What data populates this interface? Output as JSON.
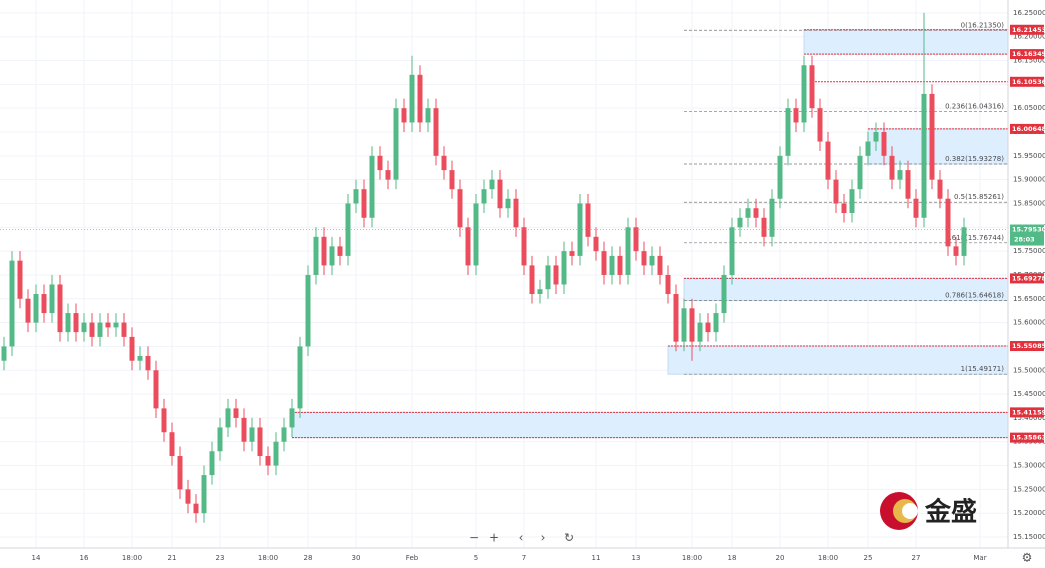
{
  "chart_data": {
    "type": "candlestick",
    "open": [
      15.52,
      15.55,
      15.73,
      15.65,
      15.6,
      15.66,
      15.62,
      15.68,
      15.58,
      15.62,
      15.58,
      15.6,
      15.57,
      15.6,
      15.59,
      15.6,
      15.57,
      15.52,
      15.53,
      15.5,
      15.42,
      15.37,
      15.32,
      15.25,
      15.22,
      15.2,
      15.28,
      15.33,
      15.38,
      15.42,
      15.4,
      15.35,
      15.38,
      15.32,
      15.3,
      15.35,
      15.38,
      15.42,
      15.55,
      15.7,
      15.78,
      15.72,
      15.76,
      15.74,
      15.85,
      15.88,
      15.82,
      15.95,
      15.92,
      15.9,
      16.05,
      16.02,
      16.12,
      16.02,
      16.05,
      15.95,
      15.92,
      15.88,
      15.8,
      15.72,
      15.85,
      15.88,
      15.9,
      15.84,
      15.86,
      15.8,
      15.72,
      15.66,
      15.67,
      15.72,
      15.68,
      15.75,
      15.74,
      15.85,
      15.78,
      15.75,
      15.7,
      15.74,
      15.7,
      15.8,
      15.75,
      15.72,
      15.74,
      15.7,
      15.66,
      15.56,
      15.63,
      15.56,
      15.6,
      15.58,
      15.62,
      15.7,
      15.8,
      15.82,
      15.84,
      15.82,
      15.78,
      15.86,
      15.95,
      16.05,
      16.02,
      16.14,
      16.05,
      15.98,
      15.9,
      15.85,
      15.83,
      15.88,
      15.95,
      15.98,
      16.0,
      15.95,
      15.9,
      15.92,
      15.86,
      15.82,
      16.08,
      15.9,
      15.86,
      15.76,
      15.74
    ],
    "high": [
      15.57,
      15.75,
      15.75,
      15.67,
      15.68,
      15.68,
      15.7,
      15.7,
      15.64,
      15.64,
      15.62,
      15.62,
      15.62,
      15.62,
      15.62,
      15.62,
      15.59,
      15.55,
      15.55,
      15.52,
      15.44,
      15.39,
      15.34,
      15.27,
      15.24,
      15.3,
      15.35,
      15.4,
      15.44,
      15.44,
      15.42,
      15.4,
      15.4,
      15.34,
      15.37,
      15.4,
      15.44,
      15.57,
      15.72,
      15.8,
      15.8,
      15.78,
      15.78,
      15.87,
      15.9,
      15.9,
      15.97,
      15.97,
      15.94,
      16.07,
      16.07,
      16.16,
      16.14,
      16.07,
      16.07,
      15.97,
      15.94,
      15.9,
      15.82,
      15.87,
      15.9,
      15.92,
      15.92,
      15.88,
      15.88,
      15.82,
      15.74,
      15.69,
      15.74,
      15.74,
      15.77,
      15.77,
      15.87,
      15.87,
      15.8,
      15.77,
      15.76,
      15.76,
      15.82,
      15.82,
      15.77,
      15.76,
      15.76,
      15.72,
      15.68,
      15.65,
      15.65,
      15.62,
      15.62,
      15.64,
      15.72,
      15.82,
      15.84,
      15.86,
      15.86,
      15.84,
      15.88,
      15.97,
      16.07,
      16.07,
      16.16,
      16.16,
      16.07,
      16.0,
      15.92,
      15.87,
      15.9,
      15.97,
      16.0,
      16.02,
      16.02,
      15.97,
      15.94,
      15.94,
      15.88,
      16.25,
      16.1,
      15.92,
      15.88,
      15.78,
      15.82
    ],
    "low": [
      15.5,
      15.53,
      15.63,
      15.58,
      15.58,
      15.6,
      15.6,
      15.56,
      15.56,
      15.56,
      15.56,
      15.55,
      15.55,
      15.57,
      15.57,
      15.55,
      15.5,
      15.5,
      15.48,
      15.4,
      15.35,
      15.3,
      15.23,
      15.2,
      15.18,
      15.18,
      15.26,
      15.31,
      15.36,
      15.38,
      15.33,
      15.33,
      15.3,
      15.28,
      15.28,
      15.33,
      15.36,
      15.4,
      15.53,
      15.68,
      15.7,
      15.7,
      15.72,
      15.72,
      15.83,
      15.8,
      15.8,
      15.9,
      15.88,
      15.88,
      16.0,
      16.0,
      16.0,
      16.0,
      15.93,
      15.9,
      15.86,
      15.78,
      15.7,
      15.7,
      15.83,
      15.86,
      15.82,
      15.82,
      15.78,
      15.7,
      15.64,
      15.64,
      15.65,
      15.66,
      15.66,
      15.72,
      15.72,
      15.76,
      15.73,
      15.68,
      15.68,
      15.68,
      15.68,
      15.73,
      15.7,
      15.7,
      15.68,
      15.64,
      15.54,
      15.54,
      15.52,
      15.54,
      15.56,
      15.56,
      15.6,
      15.68,
      15.78,
      15.8,
      15.8,
      15.76,
      15.76,
      15.84,
      15.93,
      16.0,
      16.0,
      16.03,
      15.96,
      15.88,
      15.83,
      15.81,
      15.81,
      15.86,
      15.93,
      15.96,
      15.93,
      15.88,
      15.88,
      15.84,
      15.8,
      15.8,
      15.88,
      15.84,
      15.74,
      15.72,
      15.72
    ],
    "close": [
      15.55,
      15.73,
      15.65,
      15.6,
      15.66,
      15.62,
      15.68,
      15.58,
      15.62,
      15.58,
      15.6,
      15.57,
      15.6,
      15.59,
      15.6,
      15.57,
      15.52,
      15.53,
      15.5,
      15.42,
      15.37,
      15.32,
      15.25,
      15.22,
      15.2,
      15.28,
      15.33,
      15.38,
      15.42,
      15.4,
      15.35,
      15.38,
      15.32,
      15.3,
      15.35,
      15.38,
      15.42,
      15.55,
      15.7,
      15.78,
      15.72,
      15.76,
      15.74,
      15.85,
      15.88,
      15.82,
      15.95,
      15.92,
      15.9,
      16.05,
      16.02,
      16.12,
      16.02,
      16.05,
      15.95,
      15.92,
      15.88,
      15.8,
      15.72,
      15.85,
      15.88,
      15.9,
      15.84,
      15.86,
      15.8,
      15.72,
      15.66,
      15.67,
      15.72,
      15.68,
      15.75,
      15.74,
      15.85,
      15.78,
      15.75,
      15.7,
      15.74,
      15.7,
      15.8,
      15.75,
      15.72,
      15.74,
      15.7,
      15.66,
      15.56,
      15.63,
      15.56,
      15.6,
      15.58,
      15.62,
      15.7,
      15.8,
      15.82,
      15.84,
      15.82,
      15.78,
      15.86,
      15.95,
      16.05,
      16.02,
      16.14,
      16.05,
      15.98,
      15.9,
      15.85,
      15.83,
      15.88,
      15.95,
      15.98,
      16.0,
      15.95,
      15.9,
      15.92,
      15.86,
      15.82,
      16.08,
      15.9,
      15.86,
      15.76,
      15.74,
      15.8
    ],
    "up_color": "#53b987",
    "down_color": "#eb4d5c",
    "grid": true,
    "xlim": [
      -0.5,
      125.5
    ],
    "ylim": [
      15.127,
      16.277
    ],
    "xticks": [
      {
        "value": 4,
        "label": "14"
      },
      {
        "value": 10,
        "label": "16"
      },
      {
        "value": 16,
        "label": "18:00"
      },
      {
        "value": 21,
        "label": "21"
      },
      {
        "value": 27,
        "label": "23"
      },
      {
        "value": 33,
        "label": "18:00"
      },
      {
        "value": 38,
        "label": "28"
      },
      {
        "value": 44,
        "label": "30"
      },
      {
        "value": 51,
        "label": "Feb"
      },
      {
        "value": 59,
        "label": "5"
      },
      {
        "value": 65,
        "label": "7"
      },
      {
        "value": 74,
        "label": "11"
      },
      {
        "value": 79,
        "label": "13"
      },
      {
        "value": 86,
        "label": "18:00"
      },
      {
        "value": 91,
        "label": "18"
      },
      {
        "value": 97,
        "label": "20"
      },
      {
        "value": 103,
        "label": "18:00"
      },
      {
        "value": 108,
        "label": "25"
      },
      {
        "value": 114,
        "label": "27"
      },
      {
        "value": 122,
        "label": "Mar"
      }
    ],
    "yticks": [
      {
        "value": 15.15,
        "label": "15.15000"
      },
      {
        "value": 15.2,
        "label": "15.20000"
      },
      {
        "value": 15.25,
        "label": "15.25000"
      },
      {
        "value": 15.3,
        "label": "15.30000"
      },
      {
        "value": 15.35,
        "label": "15.35000"
      },
      {
        "value": 15.4,
        "label": "15.40000"
      },
      {
        "value": 15.45,
        "label": "15.45000"
      },
      {
        "value": 15.5,
        "label": "15.50000"
      },
      {
        "value": 15.55,
        "label": "15.55000"
      },
      {
        "value": 15.6,
        "label": "15.60000"
      },
      {
        "value": 15.65,
        "label": "15.65000"
      },
      {
        "value": 15.7,
        "label": "15.70000"
      },
      {
        "value": 15.75,
        "label": "15.75000"
      },
      {
        "value": 15.8,
        "label": "15.80000"
      },
      {
        "value": 15.85,
        "label": "15.85000"
      },
      {
        "value": 15.9,
        "label": "15.90000"
      },
      {
        "value": 15.95,
        "label": "15.95000"
      },
      {
        "value": 16.0,
        "label": "16.00000"
      },
      {
        "value": 16.05,
        "label": "16.05000"
      },
      {
        "value": 16.1,
        "label": "16.10000"
      },
      {
        "value": 16.15,
        "label": "16.15000"
      },
      {
        "value": 16.2,
        "label": "16.20000"
      },
      {
        "value": 16.25,
        "label": "16.25000"
      }
    ],
    "fib_from": 85,
    "fib_levels": [
      {
        "value": 16.2135,
        "label": "0(16.21350)"
      },
      {
        "value": 16.04316,
        "label": "0.236(16.04316)"
      },
      {
        "value": 15.93278,
        "label": "0.382(15.93278)"
      },
      {
        "value": 15.85261,
        "label": "0.5(15.85261)"
      },
      {
        "value": 15.76744,
        "label": "0.618(15.76744)"
      },
      {
        "value": 15.64618,
        "label": "0.786(15.64618)"
      },
      {
        "value": 15.49171,
        "label": "1(15.49171)"
      }
    ],
    "zones": [
      {
        "top": 16.21453,
        "bottom": 16.16349,
        "from": 100
      },
      {
        "top": 16.00648,
        "bottom": 15.93278,
        "from": 108
      },
      {
        "top": 15.69278,
        "bottom": 15.64618,
        "from": 85
      },
      {
        "top": 15.55085,
        "bottom": 15.49171,
        "from": 83
      },
      {
        "top": 15.41159,
        "bottom": 15.35863,
        "from": 36
      }
    ],
    "levels": [
      {
        "value": 16.21453,
        "label": "16.21453",
        "from": 100
      },
      {
        "value": 16.16349,
        "label": "16.16349",
        "from": 100
      },
      {
        "value": 16.10536,
        "label": "16.10536",
        "from": 101
      },
      {
        "value": 16.00648,
        "label": "16.00648",
        "from": 108
      },
      {
        "value": 15.69278,
        "label": "15.69278",
        "from": 85
      },
      {
        "value": 15.55085,
        "label": "15.55085",
        "from": 83
      },
      {
        "value": 15.41159,
        "label": "15.41159",
        "from": 36
      },
      {
        "value": 15.35863,
        "label": "15.35863",
        "from": 36
      }
    ],
    "current_price": {
      "value": 15.7953,
      "label": "15.79530"
    },
    "countdown": "28:03",
    "watermark": "金盛"
  }
}
